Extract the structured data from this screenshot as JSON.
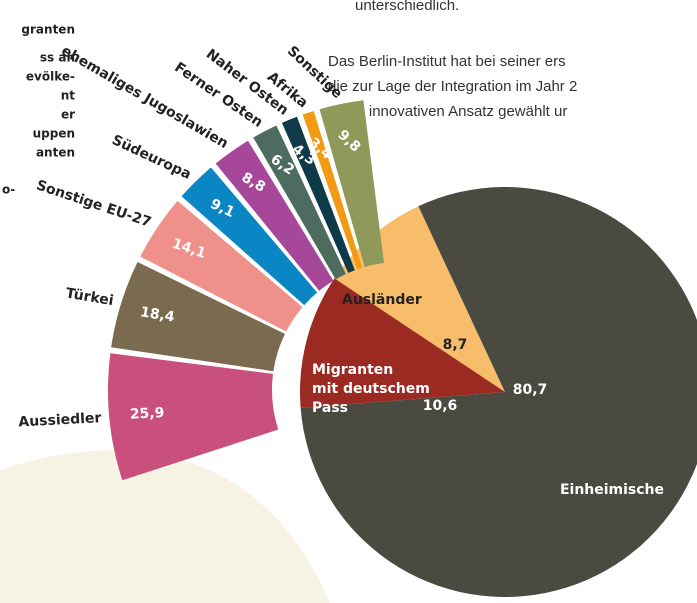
{
  "text": {
    "top": "unterschiedlich.",
    "paragraph": [
      "Das Berlin-Institut hat bei seiner ers",
      "die zur Lage der Integration im Jahr 2",
      "einen innovativen Ansatz gewählt ur"
    ],
    "left_fragments": [
      "granten",
      "ss an",
      "evölke-",
      "nt",
      "er",
      "uppen",
      "anten",
      "o-"
    ]
  },
  "chart_data": [
    {
      "type": "pie",
      "categories": [
        "Einheimische",
        "Migranten mit deutschem Pass",
        "Ausländer"
      ],
      "values": [
        80.7,
        10.6,
        8.7
      ],
      "value_labels": [
        "80,7",
        "10,6",
        "8,7"
      ],
      "colors": [
        "#4a4a40",
        "#9b2a22",
        "#f8bd6a"
      ]
    },
    {
      "type": "fan",
      "categories": [
        "Aussiedler",
        "Türkei",
        "Sonstige EU-27",
        "Südeuropa",
        "ehemaliges Jugoslawien",
        "Ferner Osten",
        "Naher Osten",
        "Afrika",
        "Sonstige"
      ],
      "values": [
        25.9,
        18.4,
        14.1,
        9.1,
        8.8,
        6.2,
        4.3,
        3.4,
        9.8
      ],
      "value_labels": [
        "25,9",
        "18,4",
        "14,1",
        "9,1",
        "8,8",
        "6,2",
        "4,3",
        "3,4",
        "9,8"
      ],
      "colors": [
        "#c94f7c",
        "#7a6a4f",
        "#f0908a",
        "#0a86c4",
        "#a6479a",
        "#4d6b5e",
        "#0f3a4a",
        "#f39a13",
        "#8f9a5a"
      ]
    }
  ]
}
